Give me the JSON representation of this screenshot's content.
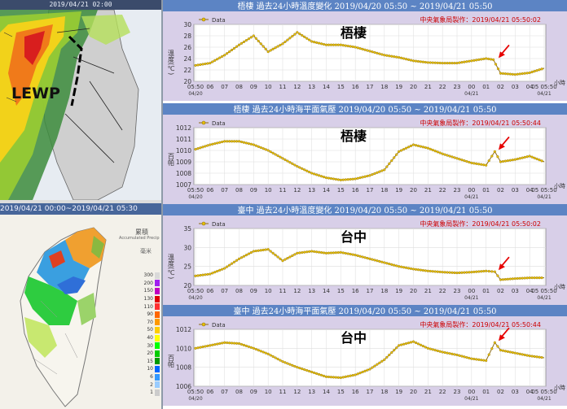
{
  "radar": {
    "timestamp": "2019/04/21 02:00",
    "annotation": "LEWP"
  },
  "rainfall": {
    "period": "2019/04/21 00:00~2019/04/21 05:30",
    "legend_title": "累積",
    "legend_subtitle": "Accumulated Precip",
    "legend_unit": "毫米",
    "scale": [
      "300",
      "200",
      "150",
      "130",
      "110",
      "90",
      "70",
      "50",
      "40",
      "30",
      "20",
      "15",
      "10",
      "6",
      "2",
      "1"
    ],
    "scale_colors": [
      "#d9d9d9",
      "#a020f0",
      "#c000c0",
      "#e00000",
      "#ff3030",
      "#ff6600",
      "#ff9900",
      "#ffcc00",
      "#ffff00",
      "#00ff00",
      "#00cc00",
      "#009900",
      "#0066ff",
      "#3399ff",
      "#99ccff",
      "#cccccc"
    ]
  },
  "colors": {
    "header_bg": "#5c84c4",
    "header_text": "#ffffff",
    "frame": "#d8cfe8",
    "plot_bg": "#ffffff",
    "line": "#8b6914",
    "marker": "#e8c200",
    "credit": "#cc0000",
    "arrow": "#e60000",
    "grid": "#dddddd"
  },
  "chart_data": [
    {
      "type": "line",
      "header": "梧棲  過去24小時溫度變化 2019/04/20 05:50 ~ 2019/04/21 05:50",
      "station_label": "梧棲",
      "legend": "Data",
      "credit": "中央氣象局製作：2019/04/21 05:50:02",
      "ylabel": "溫度(℃)",
      "xlabel": "小時",
      "ylim": [
        20,
        30
      ],
      "yticks": [
        "20",
        "22",
        "24",
        "26",
        "28",
        "30"
      ],
      "xticks": [
        "05:50",
        "06",
        "07",
        "08",
        "09",
        "10",
        "11",
        "12",
        "13",
        "14",
        "15",
        "16",
        "17",
        "18",
        "19",
        "20",
        "21",
        "22",
        "23",
        "00",
        "01",
        "02",
        "03",
        "04",
        "05 05:50"
      ],
      "xdates": [
        "04/20",
        "04/21",
        "04/21"
      ],
      "x": [
        0,
        1,
        2,
        3,
        4,
        5,
        6,
        7,
        8,
        9,
        10,
        11,
        12,
        13,
        14,
        15,
        16,
        17,
        18,
        19,
        20,
        20.5,
        21,
        22,
        23,
        24
      ],
      "values": [
        22.8,
        23.2,
        24.6,
        26.4,
        28.0,
        25.2,
        26.6,
        28.6,
        27.0,
        26.4,
        26.4,
        26.0,
        25.3,
        24.6,
        24.2,
        23.6,
        23.3,
        23.2,
        23.2,
        23.6,
        24.0,
        23.8,
        21.4,
        21.2,
        21.5,
        22.3
      ]
    },
    {
      "type": "line",
      "header": "梧棲  過去24小時海平面氣壓 2019/04/20 05:50 ~ 2019/04/21 05:50",
      "station_label": "梧棲",
      "legend": "Data",
      "credit": "中央氣象局製作：2019/04/21 05:50:44",
      "ylabel": "百帕",
      "xlabel": "小時",
      "ylim": [
        1007,
        1012
      ],
      "yticks": [
        "1007",
        "1008",
        "1009",
        "1010",
        "1011",
        "1012"
      ],
      "xticks": [
        "05:50",
        "06",
        "07",
        "08",
        "09",
        "10",
        "11",
        "12",
        "13",
        "14",
        "15",
        "16",
        "17",
        "18",
        "19",
        "20",
        "21",
        "22",
        "23",
        "00",
        "01",
        "02",
        "03",
        "04",
        "05 05:50"
      ],
      "xdates": [
        "04/20",
        "04/21",
        "04/21"
      ],
      "x": [
        0,
        1,
        2,
        3,
        4,
        5,
        6,
        7,
        8,
        9,
        10,
        11,
        12,
        13,
        14,
        15,
        16,
        17,
        18,
        19,
        20,
        20.6,
        21,
        22,
        23,
        24
      ],
      "values": [
        1010.1,
        1010.5,
        1010.8,
        1010.8,
        1010.5,
        1010.0,
        1009.3,
        1008.6,
        1008.0,
        1007.6,
        1007.4,
        1007.5,
        1007.8,
        1008.3,
        1009.9,
        1010.5,
        1010.2,
        1009.7,
        1009.3,
        1008.9,
        1008.7,
        1009.9,
        1009.0,
        1009.2,
        1009.5,
        1009.0
      ]
    },
    {
      "type": "line",
      "header": "臺中  過去24小時溫度變化 2019/04/20 05:50 ~ 2019/04/21 05:50",
      "station_label": "台中",
      "legend": "Data",
      "credit": "中央氣象局製作：2019/04/21 05:50:02",
      "ylabel": "溫度(℃)",
      "xlabel": "小時",
      "ylim": [
        20,
        35
      ],
      "yticks": [
        "20",
        "25",
        "30",
        "35"
      ],
      "xticks": [
        "05:50",
        "06",
        "07",
        "08",
        "09",
        "10",
        "11",
        "12",
        "13",
        "14",
        "15",
        "16",
        "17",
        "18",
        "19",
        "20",
        "21",
        "22",
        "23",
        "00",
        "01",
        "02",
        "03",
        "04",
        "05 05:50"
      ],
      "xdates": [
        "04/20",
        "04/21",
        "04/21"
      ],
      "x": [
        0,
        1,
        2,
        3,
        4,
        5,
        6,
        7,
        8,
        9,
        10,
        11,
        12,
        13,
        14,
        15,
        16,
        17,
        18,
        19,
        20,
        20.6,
        21,
        22,
        23,
        24
      ],
      "values": [
        22.5,
        23.0,
        24.5,
        27.0,
        29.0,
        29.5,
        26.5,
        28.5,
        29.0,
        28.5,
        28.7,
        28.0,
        27.0,
        26.0,
        25.0,
        24.3,
        23.8,
        23.5,
        23.3,
        23.5,
        23.8,
        23.6,
        21.5,
        21.8,
        22.0,
        22.0
      ]
    },
    {
      "type": "line",
      "header": "臺中  過去24小時海平面氣壓 2019/04/20 05:50 ~ 2019/04/21 05:50",
      "station_label": "台中",
      "legend": "Data",
      "credit": "中央氣象局製作：2019/04/21 05:50:44",
      "ylabel": "百帕",
      "xlabel": "小時",
      "ylim": [
        1006,
        1012
      ],
      "yticks": [
        "1006",
        "1008",
        "1010",
        "1012"
      ],
      "xticks": [
        "05:50",
        "06",
        "07",
        "08",
        "09",
        "10",
        "11",
        "12",
        "13",
        "14",
        "15",
        "16",
        "17",
        "18",
        "19",
        "20",
        "21",
        "22",
        "23",
        "00",
        "01",
        "02",
        "03",
        "04",
        "05 05:50"
      ],
      "xdates": [
        "04/20",
        "04/21",
        "04/21"
      ],
      "x": [
        0,
        1,
        2,
        3,
        4,
        5,
        6,
        7,
        8,
        9,
        10,
        11,
        12,
        13,
        14,
        15,
        16,
        17,
        18,
        19,
        20,
        20.6,
        21,
        22,
        23,
        24
      ],
      "values": [
        1010.0,
        1010.3,
        1010.6,
        1010.5,
        1010.0,
        1009.4,
        1008.6,
        1008.0,
        1007.5,
        1007.0,
        1006.9,
        1007.2,
        1007.8,
        1008.8,
        1010.3,
        1010.7,
        1010.0,
        1009.6,
        1009.3,
        1008.9,
        1008.7,
        1010.6,
        1009.8,
        1009.5,
        1009.2,
        1009.0
      ]
    }
  ]
}
